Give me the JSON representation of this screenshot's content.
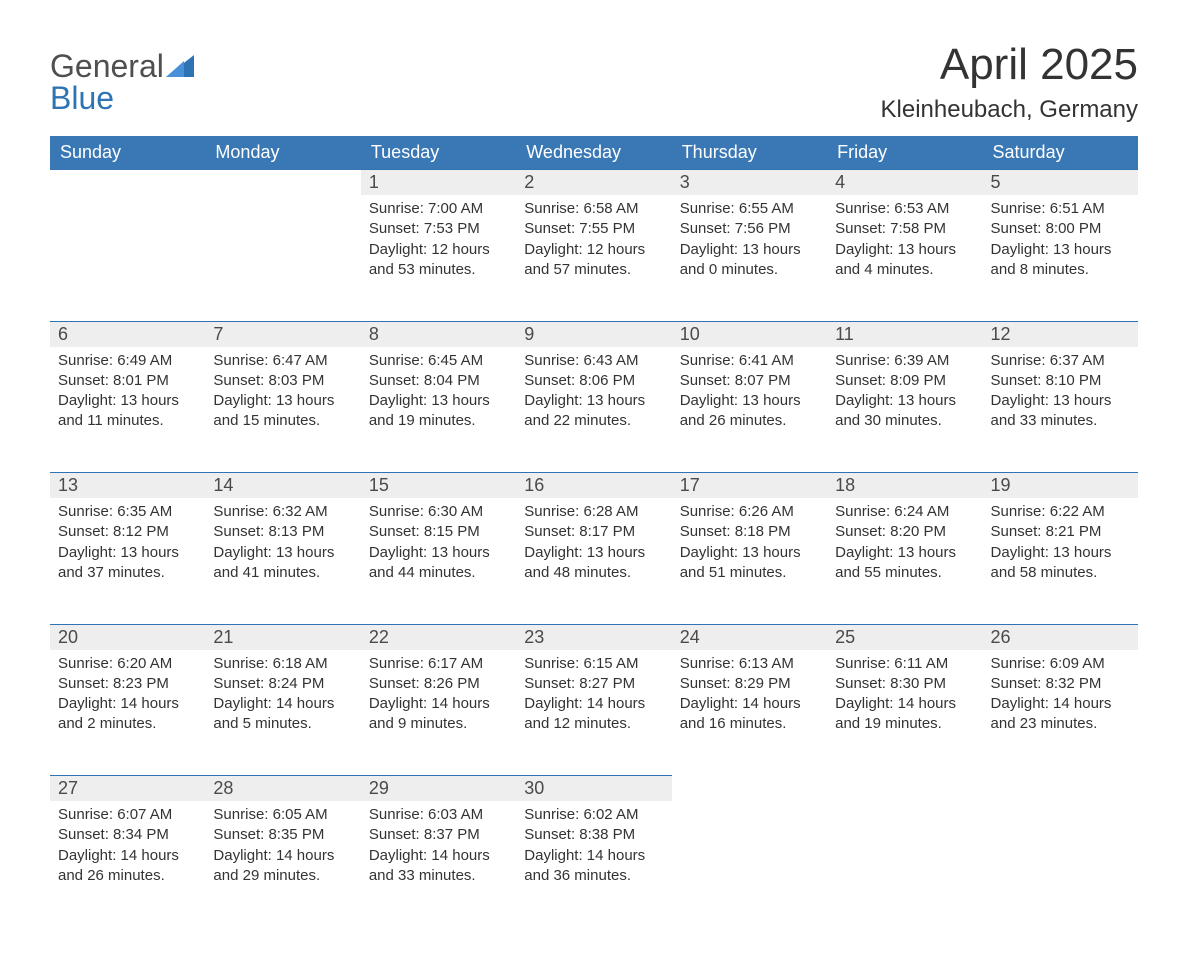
{
  "logo": {
    "text_general": "General",
    "text_blue": "Blue",
    "sail_color": "#2e74b5",
    "general_color": "#4f4f4f"
  },
  "header": {
    "month_year": "April 2025",
    "location": "Kleinheubach, Germany"
  },
  "calendar": {
    "type": "table",
    "colors": {
      "header_bg": "#3a78b5",
      "header_text": "#ffffff",
      "daynum_bg": "#eeeeee",
      "daynum_border_top": "#2e74b5",
      "body_text": "#333333",
      "page_bg": "#ffffff"
    },
    "fonts": {
      "title_size_pt": 33,
      "location_size_pt": 18,
      "header_size_pt": 13.5,
      "daynum_size_pt": 13.5,
      "cell_size_pt": 11
    },
    "columns": [
      "Sunday",
      "Monday",
      "Tuesday",
      "Wednesday",
      "Thursday",
      "Friday",
      "Saturday"
    ],
    "weeks": [
      [
        null,
        null,
        {
          "day": "1",
          "sunrise": "Sunrise: 7:00 AM",
          "sunset": "Sunset: 7:53 PM",
          "daylight": "Daylight: 12 hours and 53 minutes."
        },
        {
          "day": "2",
          "sunrise": "Sunrise: 6:58 AM",
          "sunset": "Sunset: 7:55 PM",
          "daylight": "Daylight: 12 hours and 57 minutes."
        },
        {
          "day": "3",
          "sunrise": "Sunrise: 6:55 AM",
          "sunset": "Sunset: 7:56 PM",
          "daylight": "Daylight: 13 hours and 0 minutes."
        },
        {
          "day": "4",
          "sunrise": "Sunrise: 6:53 AM",
          "sunset": "Sunset: 7:58 PM",
          "daylight": "Daylight: 13 hours and 4 minutes."
        },
        {
          "day": "5",
          "sunrise": "Sunrise: 6:51 AM",
          "sunset": "Sunset: 8:00 PM",
          "daylight": "Daylight: 13 hours and 8 minutes."
        }
      ],
      [
        {
          "day": "6",
          "sunrise": "Sunrise: 6:49 AM",
          "sunset": "Sunset: 8:01 PM",
          "daylight": "Daylight: 13 hours and 11 minutes."
        },
        {
          "day": "7",
          "sunrise": "Sunrise: 6:47 AM",
          "sunset": "Sunset: 8:03 PM",
          "daylight": "Daylight: 13 hours and 15 minutes."
        },
        {
          "day": "8",
          "sunrise": "Sunrise: 6:45 AM",
          "sunset": "Sunset: 8:04 PM",
          "daylight": "Daylight: 13 hours and 19 minutes."
        },
        {
          "day": "9",
          "sunrise": "Sunrise: 6:43 AM",
          "sunset": "Sunset: 8:06 PM",
          "daylight": "Daylight: 13 hours and 22 minutes."
        },
        {
          "day": "10",
          "sunrise": "Sunrise: 6:41 AM",
          "sunset": "Sunset: 8:07 PM",
          "daylight": "Daylight: 13 hours and 26 minutes."
        },
        {
          "day": "11",
          "sunrise": "Sunrise: 6:39 AM",
          "sunset": "Sunset: 8:09 PM",
          "daylight": "Daylight: 13 hours and 30 minutes."
        },
        {
          "day": "12",
          "sunrise": "Sunrise: 6:37 AM",
          "sunset": "Sunset: 8:10 PM",
          "daylight": "Daylight: 13 hours and 33 minutes."
        }
      ],
      [
        {
          "day": "13",
          "sunrise": "Sunrise: 6:35 AM",
          "sunset": "Sunset: 8:12 PM",
          "daylight": "Daylight: 13 hours and 37 minutes."
        },
        {
          "day": "14",
          "sunrise": "Sunrise: 6:32 AM",
          "sunset": "Sunset: 8:13 PM",
          "daylight": "Daylight: 13 hours and 41 minutes."
        },
        {
          "day": "15",
          "sunrise": "Sunrise: 6:30 AM",
          "sunset": "Sunset: 8:15 PM",
          "daylight": "Daylight: 13 hours and 44 minutes."
        },
        {
          "day": "16",
          "sunrise": "Sunrise: 6:28 AM",
          "sunset": "Sunset: 8:17 PM",
          "daylight": "Daylight: 13 hours and 48 minutes."
        },
        {
          "day": "17",
          "sunrise": "Sunrise: 6:26 AM",
          "sunset": "Sunset: 8:18 PM",
          "daylight": "Daylight: 13 hours and 51 minutes."
        },
        {
          "day": "18",
          "sunrise": "Sunrise: 6:24 AM",
          "sunset": "Sunset: 8:20 PM",
          "daylight": "Daylight: 13 hours and 55 minutes."
        },
        {
          "day": "19",
          "sunrise": "Sunrise: 6:22 AM",
          "sunset": "Sunset: 8:21 PM",
          "daylight": "Daylight: 13 hours and 58 minutes."
        }
      ],
      [
        {
          "day": "20",
          "sunrise": "Sunrise: 6:20 AM",
          "sunset": "Sunset: 8:23 PM",
          "daylight": "Daylight: 14 hours and 2 minutes."
        },
        {
          "day": "21",
          "sunrise": "Sunrise: 6:18 AM",
          "sunset": "Sunset: 8:24 PM",
          "daylight": "Daylight: 14 hours and 5 minutes."
        },
        {
          "day": "22",
          "sunrise": "Sunrise: 6:17 AM",
          "sunset": "Sunset: 8:26 PM",
          "daylight": "Daylight: 14 hours and 9 minutes."
        },
        {
          "day": "23",
          "sunrise": "Sunrise: 6:15 AM",
          "sunset": "Sunset: 8:27 PM",
          "daylight": "Daylight: 14 hours and 12 minutes."
        },
        {
          "day": "24",
          "sunrise": "Sunrise: 6:13 AM",
          "sunset": "Sunset: 8:29 PM",
          "daylight": "Daylight: 14 hours and 16 minutes."
        },
        {
          "day": "25",
          "sunrise": "Sunrise: 6:11 AM",
          "sunset": "Sunset: 8:30 PM",
          "daylight": "Daylight: 14 hours and 19 minutes."
        },
        {
          "day": "26",
          "sunrise": "Sunrise: 6:09 AM",
          "sunset": "Sunset: 8:32 PM",
          "daylight": "Daylight: 14 hours and 23 minutes."
        }
      ],
      [
        {
          "day": "27",
          "sunrise": "Sunrise: 6:07 AM",
          "sunset": "Sunset: 8:34 PM",
          "daylight": "Daylight: 14 hours and 26 minutes."
        },
        {
          "day": "28",
          "sunrise": "Sunrise: 6:05 AM",
          "sunset": "Sunset: 8:35 PM",
          "daylight": "Daylight: 14 hours and 29 minutes."
        },
        {
          "day": "29",
          "sunrise": "Sunrise: 6:03 AM",
          "sunset": "Sunset: 8:37 PM",
          "daylight": "Daylight: 14 hours and 33 minutes."
        },
        {
          "day": "30",
          "sunrise": "Sunrise: 6:02 AM",
          "sunset": "Sunset: 8:38 PM",
          "daylight": "Daylight: 14 hours and 36 minutes."
        },
        null,
        null,
        null
      ]
    ]
  }
}
